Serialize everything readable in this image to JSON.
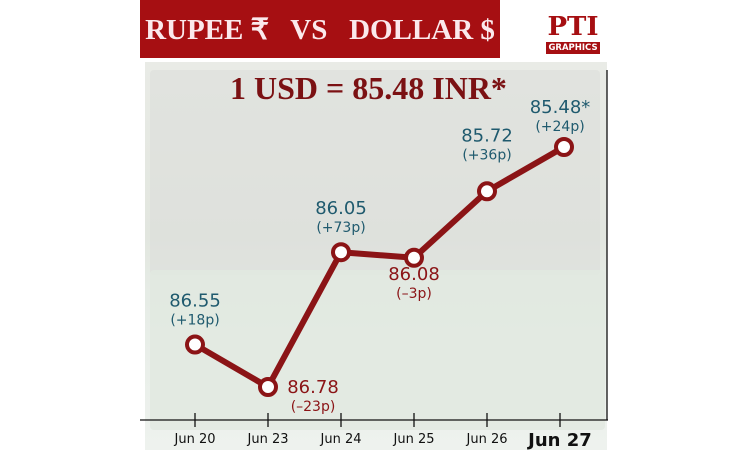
{
  "header": {
    "title": "RUPEE ₹   VS   DOLLAR $",
    "logo": "PTI",
    "logo_sub": "GRAPHICS",
    "headline": "1 USD = 85.48 INR*"
  },
  "colors": {
    "banner": "#a60f12",
    "line": "#8b1416",
    "label_blue": "#1f5a6e",
    "label_red": "#8b1416"
  },
  "chart_data": {
    "type": "line",
    "categories": [
      "Jun 20",
      "Jun 23",
      "Jun 24",
      "Jun 25",
      "Jun 26",
      "Jun 27"
    ],
    "values": [
      86.55,
      86.78,
      86.05,
      86.08,
      85.72,
      85.48
    ],
    "value_labels": [
      "86.55",
      "86.78",
      "86.05",
      "86.08",
      "85.72",
      "85.48*"
    ],
    "change_labels": [
      "(+18p)",
      "(–23p)",
      "(+73p)",
      "(–3p)",
      "(+36p)",
      "(+24p)"
    ],
    "y_inverted": true,
    "grid": false
  }
}
